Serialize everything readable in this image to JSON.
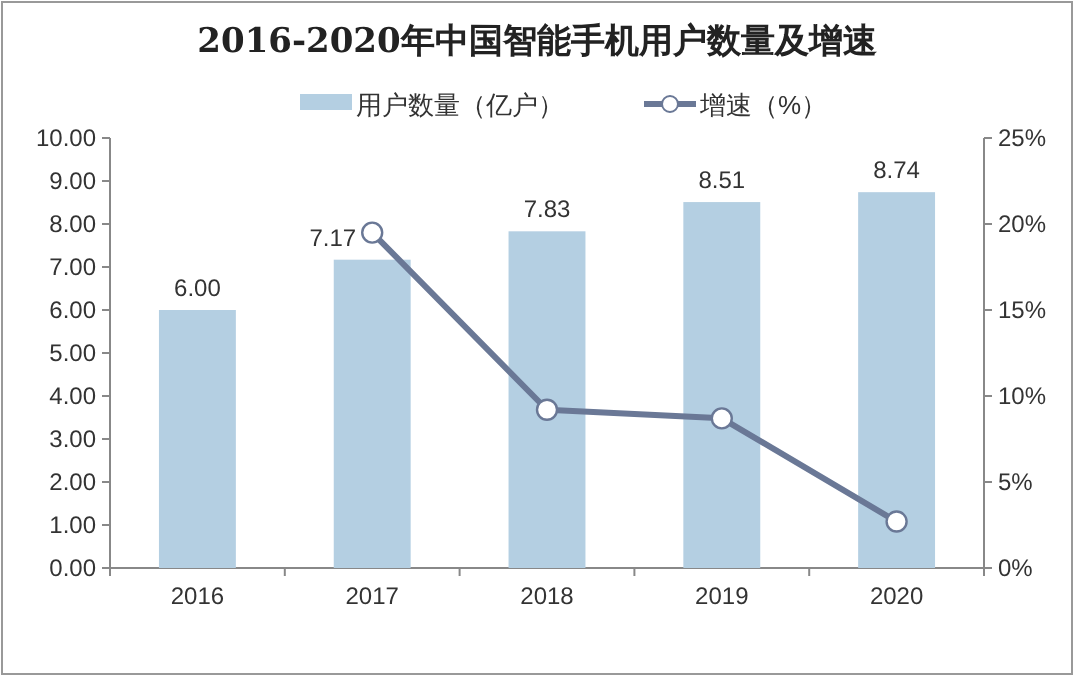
{
  "chart_data": {
    "type": "bar",
    "title": "2016-2020年中国智能手机用户数量及增速",
    "categories": [
      "2016",
      "2017",
      "2018",
      "2019",
      "2020"
    ],
    "series": [
      {
        "name": "用户数量（亿户）",
        "color": "#b4cfe2",
        "values": [
          6.0,
          7.17,
          7.83,
          8.51,
          8.74
        ],
        "value_labels": [
          "6.00",
          "7.17",
          "7.83",
          "8.51",
          "8.74"
        ]
      },
      {
        "name": "增速（%）",
        "type": "line",
        "axis": "y2",
        "color": "#6a7896",
        "marker": "circle",
        "values": [
          null,
          19.5,
          9.2,
          8.7,
          2.7
        ]
      }
    ],
    "ylim": [
      0,
      10
    ],
    "yticks": [
      {
        "value": 0,
        "label": "0.00"
      },
      {
        "value": 1,
        "label": "1.00"
      },
      {
        "value": 2,
        "label": "2.00"
      },
      {
        "value": 3,
        "label": "3.00"
      },
      {
        "value": 4,
        "label": "4.00"
      },
      {
        "value": 5,
        "label": "5.00"
      },
      {
        "value": 6,
        "label": "6.00"
      },
      {
        "value": 7,
        "label": "7.00"
      },
      {
        "value": 8,
        "label": "8.00"
      },
      {
        "value": 9,
        "label": "9.00"
      },
      {
        "value": 10,
        "label": "10.00"
      }
    ],
    "y2lim": [
      0,
      25
    ],
    "y2ticks": [
      {
        "value": 0,
        "label": "0%"
      },
      {
        "value": 5,
        "label": "5%"
      },
      {
        "value": 10,
        "label": "10%"
      },
      {
        "value": 15,
        "label": "15%"
      },
      {
        "value": 20,
        "label": "20%"
      },
      {
        "value": 25,
        "label": "25%"
      }
    ],
    "grid": false,
    "legend": "top"
  }
}
